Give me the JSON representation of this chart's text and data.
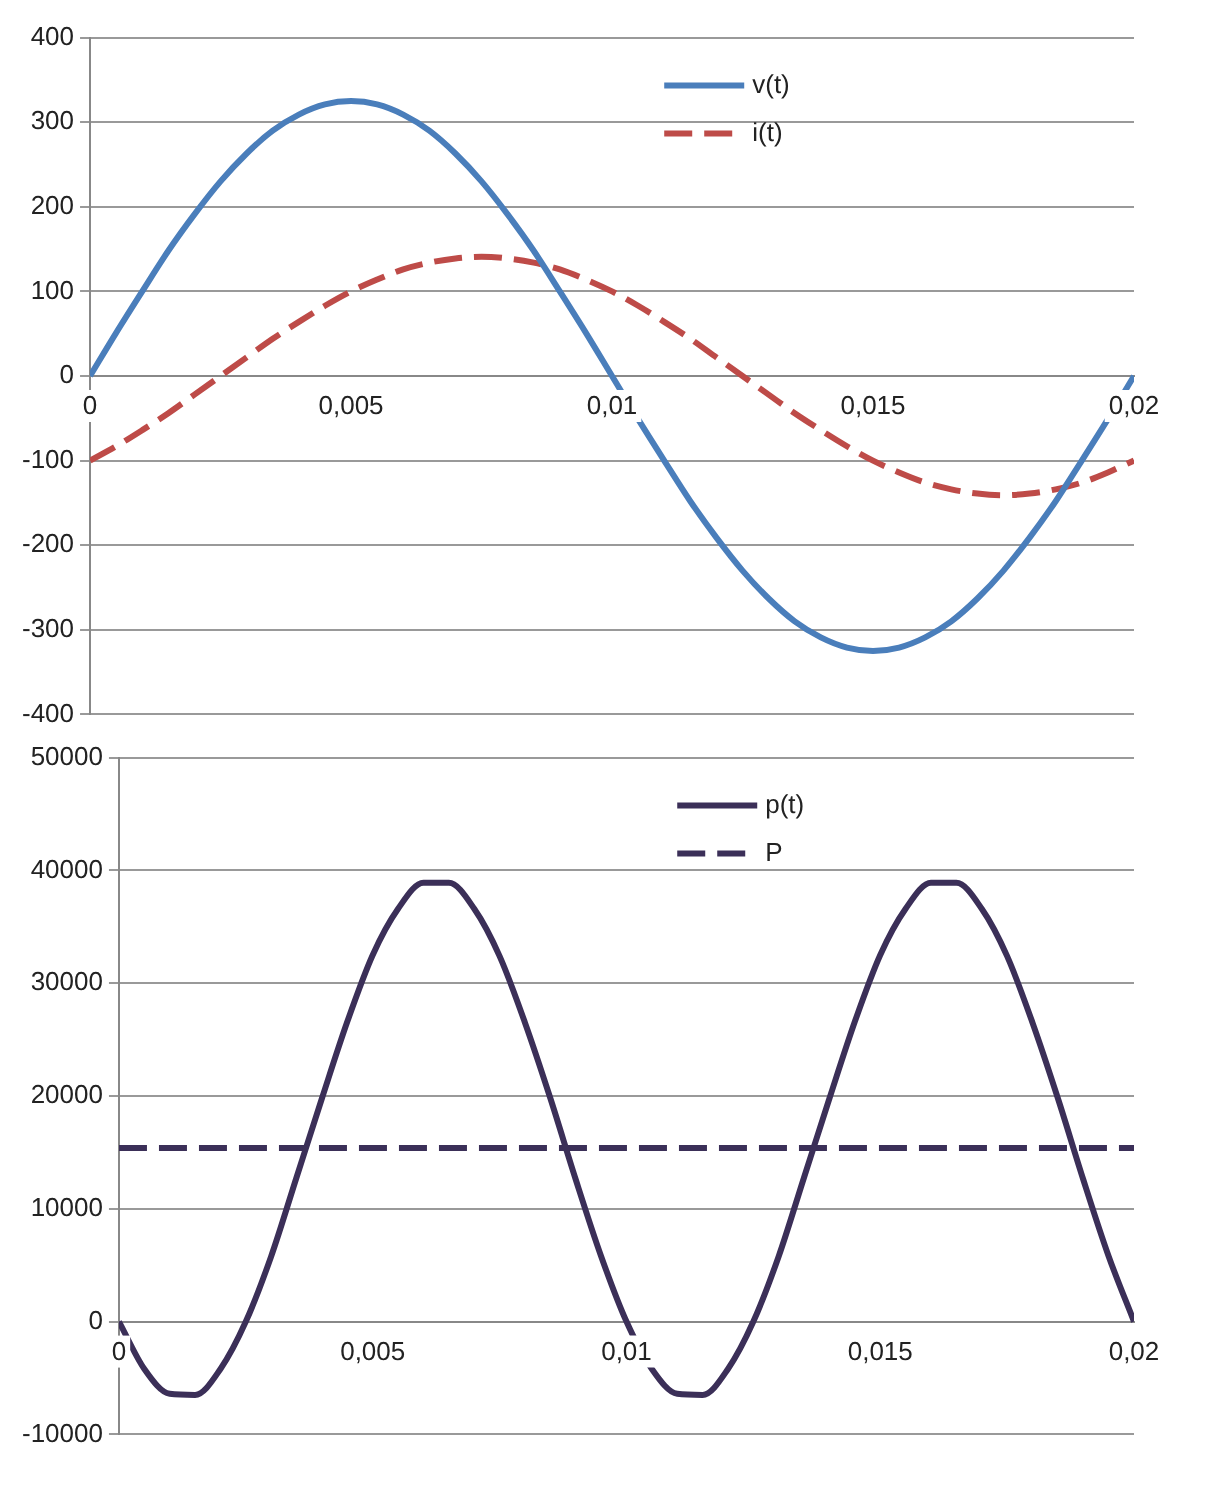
{
  "chart_data": [
    {
      "type": "line",
      "x": [
        0,
        0.0005,
        0.001,
        0.0015,
        0.002,
        0.0025,
        0.003,
        0.0035,
        0.004,
        0.0045,
        0.005,
        0.0055,
        0.006,
        0.0065,
        0.007,
        0.0075,
        0.008,
        0.0085,
        0.009,
        0.0095,
        0.01,
        0.0105,
        0.011,
        0.0115,
        0.012,
        0.0125,
        0.013,
        0.0135,
        0.014,
        0.0145,
        0.015,
        0.0155,
        0.016,
        0.0165,
        0.017,
        0.0175,
        0.018,
        0.0185,
        0.019,
        0.0195,
        0.02
      ],
      "series": [
        {
          "name": "v(t)",
          "color": "#4a7ebb",
          "line_style": "solid",
          "values": [
            0,
            51,
            100,
            148,
            191,
            230,
            263,
            290,
            309,
            321,
            325,
            321,
            309,
            290,
            263,
            230,
            191,
            148,
            100,
            51,
            0,
            -51,
            -100,
            -148,
            -191,
            -230,
            -263,
            -290,
            -309,
            -321,
            -325,
            -321,
            -309,
            -290,
            -263,
            -230,
            -191,
            -148,
            -100,
            -51,
            0
          ]
        },
        {
          "name": "i(t)",
          "color": "#be4b48",
          "line_style": "dashed",
          "values": [
            -100,
            -83,
            -64,
            -44,
            -22,
            0,
            22,
            44,
            64,
            83,
            100,
            114,
            126,
            134,
            139,
            141,
            139,
            134,
            126,
            114,
            100,
            83,
            64,
            44,
            22,
            0,
            -22,
            -44,
            -64,
            -83,
            -100,
            -114,
            -126,
            -134,
            -139,
            -141,
            -139,
            -134,
            -126,
            -114,
            -100
          ]
        }
      ],
      "xlim": [
        0,
        0.02
      ],
      "xticks": [
        0,
        {
          "value": 0.005,
          "label": "0,005"
        },
        {
          "value": 0.01,
          "label": "0,01"
        },
        {
          "value": 0.015,
          "label": "0,015"
        },
        {
          "value": 0.02,
          "label": "0,02"
        }
      ],
      "ylim": [
        -400,
        400
      ],
      "yticks": [
        -400,
        -300,
        -200,
        -100,
        0,
        100,
        200,
        300,
        400
      ],
      "grid": "y",
      "legend": "top right",
      "marker": "none"
    },
    {
      "type": "line",
      "x": [
        0,
        0.0005,
        0.001,
        0.0015,
        0.002,
        0.0025,
        0.003,
        0.0035,
        0.004,
        0.0045,
        0.005,
        0.0055,
        0.006,
        0.0065,
        0.007,
        0.0075,
        0.008,
        0.0085,
        0.009,
        0.0095,
        0.01,
        0.0105,
        0.011,
        0.0115,
        0.012,
        0.0125,
        0.013,
        0.0135,
        0.014,
        0.0145,
        0.015,
        0.0155,
        0.016,
        0.0165,
        0.017,
        0.0175,
        0.018,
        0.0185,
        0.019,
        0.0195,
        0.02
      ],
      "series": [
        {
          "name": "p(t)",
          "color": "#3b2f58",
          "line_style": "solid",
          "values": [
            0,
            -4200,
            -6400,
            -6500,
            -4200,
            0,
            5800,
            12800,
            19800,
            26600,
            32500,
            36600,
            38900,
            38900,
            36600,
            32400,
            26500,
            19800,
            12600,
            5800,
            0,
            -4200,
            -6400,
            -6500,
            -4200,
            0,
            5800,
            12800,
            19800,
            26600,
            32500,
            36600,
            38900,
            38900,
            36600,
            32400,
            26500,
            19800,
            12600,
            5800,
            0
          ]
        },
        {
          "name": "P",
          "color": "#3b2f58",
          "line_style": "dashed",
          "x": [
            0,
            0.02
          ],
          "values": [
            15400,
            15400
          ]
        }
      ],
      "xlim": [
        0,
        0.02
      ],
      "xticks": [
        0,
        {
          "value": 0.005,
          "label": "0,005"
        },
        {
          "value": 0.01,
          "label": "0,01"
        },
        {
          "value": 0.015,
          "label": "0,015"
        },
        {
          "value": 0.02,
          "label": "0,02"
        }
      ],
      "ylim": [
        -10000,
        50000
      ],
      "yticks": [
        -10000,
        0,
        10000,
        20000,
        30000,
        40000,
        50000
      ],
      "grid": "y",
      "legend": "top right",
      "marker": "none"
    }
  ]
}
